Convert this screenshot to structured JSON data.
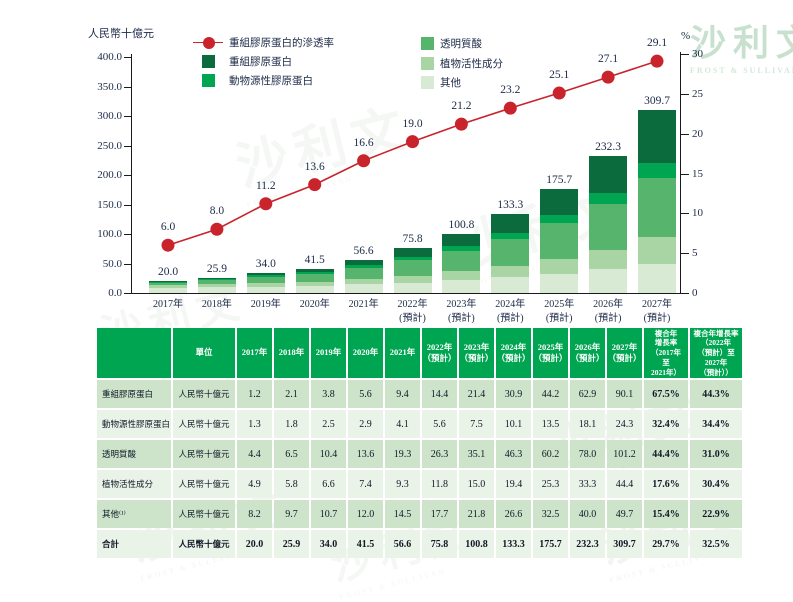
{
  "watermark": {
    "text": "沙利文",
    "subtext": "FROST & SULLIVAN"
  },
  "colors": {
    "accent_green": "#00a551",
    "dark_green": "#0b6b3c",
    "medium_green": "#56b46c",
    "light_green": "#a9d5a5",
    "pale_green": "#d8ead4",
    "line_red": "#c9232c",
    "row_dark": "#cde4cb",
    "row_light": "#e9f3e7",
    "text_navy": "#1c2a47"
  },
  "chart_data": {
    "type": "bar",
    "subtype": "stacked-bars-with-line",
    "categories": [
      {
        "label": "2017年",
        "sub": ""
      },
      {
        "label": "2018年",
        "sub": ""
      },
      {
        "label": "2019年",
        "sub": ""
      },
      {
        "label": "2020年",
        "sub": ""
      },
      {
        "label": "2021年",
        "sub": ""
      },
      {
        "label": "2022年",
        "sub": "(預計)"
      },
      {
        "label": "2023年",
        "sub": "(預計)"
      },
      {
        "label": "2024年",
        "sub": "(預計)"
      },
      {
        "label": "2025年",
        "sub": "(預計)"
      },
      {
        "label": "2026年",
        "sub": "(預計)"
      },
      {
        "label": "2027年",
        "sub": "(預計)"
      }
    ],
    "series": [
      {
        "name": "其他",
        "color": "#d8ead4",
        "values": [
          8.2,
          9.7,
          10.7,
          12.0,
          14.5,
          17.7,
          21.8,
          26.6,
          32.5,
          40.0,
          49.7
        ]
      },
      {
        "name": "植物活性成分",
        "color": "#a9d5a5",
        "values": [
          4.9,
          5.8,
          6.6,
          7.4,
          9.3,
          11.8,
          15.0,
          19.4,
          25.3,
          33.3,
          44.4
        ]
      },
      {
        "name": "透明質酸",
        "color": "#56b46c",
        "values": [
          4.4,
          6.5,
          10.4,
          13.6,
          19.3,
          26.3,
          35.1,
          46.3,
          60.2,
          78.0,
          101.2
        ]
      },
      {
        "name": "動物源性膠原蛋白",
        "color": "#00a551",
        "values": [
          1.3,
          1.8,
          2.5,
          2.9,
          4.1,
          5.6,
          7.5,
          10.1,
          13.5,
          18.1,
          24.3
        ]
      },
      {
        "name": "重組膠原蛋白",
        "color": "#0b6b3c",
        "values": [
          1.2,
          2.1,
          3.8,
          5.6,
          9.4,
          14.4,
          21.4,
          30.9,
          44.2,
          62.9,
          90.1
        ]
      }
    ],
    "totals": [
      "20.0",
      "25.9",
      "34.0",
      "41.5",
      "56.6",
      "75.8",
      "100.8",
      "133.3",
      "175.7",
      "232.3",
      "309.7"
    ],
    "line": {
      "name": "重組膠原蛋白的滲透率",
      "color": "#c9232c",
      "values": [
        6.0,
        8.0,
        11.2,
        13.6,
        16.6,
        19.0,
        21.2,
        23.2,
        25.1,
        27.1,
        29.1
      ],
      "labels": [
        "6.0",
        "8.0",
        "11.2",
        "13.6",
        "16.6",
        "19.0",
        "21.2",
        "23.2",
        "25.1",
        "27.1",
        "29.1"
      ]
    },
    "left_axis": {
      "title": "人民幣十億元",
      "max": 400,
      "ticks": [
        {
          "label": "400.0",
          "value": 400
        },
        {
          "label": "350.0",
          "value": 350
        },
        {
          "label": "300.0",
          "value": 300
        },
        {
          "label": "250.0",
          "value": 250
        },
        {
          "label": "200.0",
          "value": 200
        },
        {
          "label": "150.0",
          "value": 150
        },
        {
          "label": "100.0",
          "value": 100
        },
        {
          "label": "50.0",
          "value": 50
        },
        {
          "label": "0.0",
          "value": 0
        }
      ]
    },
    "right_axis": {
      "title": "%",
      "max": 30,
      "ticks": [
        {
          "label": "30",
          "value": 30
        },
        {
          "label": "25",
          "value": 25
        },
        {
          "label": "20",
          "value": 20
        },
        {
          "label": "15",
          "value": 15
        },
        {
          "label": "10",
          "value": 10
        },
        {
          "label": "5",
          "value": 5
        },
        {
          "label": "0",
          "value": 0
        }
      ]
    },
    "legend": [
      {
        "label": "重組膠原蛋白的滲透率",
        "type": "line",
        "color": "#c9232c"
      },
      {
        "label": "重組膠原蛋白",
        "type": "box",
        "color": "#0b6b3c"
      },
      {
        "label": "動物源性膠原蛋白",
        "type": "box",
        "color": "#00a551"
      },
      {
        "label": "透明質酸",
        "type": "box",
        "color": "#56b46c"
      },
      {
        "label": "植物活性成分",
        "type": "box",
        "color": "#a9d5a5"
      },
      {
        "label": "其他",
        "type": "box",
        "color": "#d8ead4"
      }
    ],
    "legend_position": "top",
    "grid": false
  },
  "table": {
    "unit_header": "單位",
    "year_headers": [
      {
        "label": "2017年",
        "sub": ""
      },
      {
        "label": "2018年",
        "sub": ""
      },
      {
        "label": "2019年",
        "sub": ""
      },
      {
        "label": "2020年",
        "sub": ""
      },
      {
        "label": "2021年",
        "sub": ""
      },
      {
        "label": "2022年",
        "sub": "（預計）"
      },
      {
        "label": "2023年",
        "sub": "（預計）"
      },
      {
        "label": "2024年",
        "sub": "（預計）"
      },
      {
        "label": "2025年",
        "sub": "（預計）"
      },
      {
        "label": "2026年",
        "sub": "（預計）"
      },
      {
        "label": "2027年",
        "sub": "（預計）"
      }
    ],
    "cagr_header_1": "複合年\n增長率\n（2017年\n至\n2021年）",
    "cagr_header_2": "複合年增長率\n（2022年\n（預計）至\n2027年\n（預計））",
    "rows": [
      {
        "label": "重組膠原蛋白",
        "unit": "人民幣十億元",
        "values": [
          "1.2",
          "2.1",
          "3.8",
          "5.6",
          "9.4",
          "14.4",
          "21.4",
          "30.9",
          "44.2",
          "62.9",
          "90.1"
        ],
        "cagr1": "67.5%",
        "cagr2": "44.3%",
        "total": false
      },
      {
        "label": "動物源性膠原蛋白",
        "unit": "人民幣十億元",
        "values": [
          "1.3",
          "1.8",
          "2.5",
          "2.9",
          "4.1",
          "5.6",
          "7.5",
          "10.1",
          "13.5",
          "18.1",
          "24.3"
        ],
        "cagr1": "32.4%",
        "cagr2": "34.4%",
        "total": false
      },
      {
        "label": "透明質酸",
        "unit": "人民幣十億元",
        "values": [
          "4.4",
          "6.5",
          "10.4",
          "13.6",
          "19.3",
          "26.3",
          "35.1",
          "46.3",
          "60.2",
          "78.0",
          "101.2"
        ],
        "cagr1": "44.4%",
        "cagr2": "31.0%",
        "total": false
      },
      {
        "label": "植物活性成分",
        "unit": "人民幣十億元",
        "values": [
          "4.9",
          "5.8",
          "6.6",
          "7.4",
          "9.3",
          "11.8",
          "15.0",
          "19.4",
          "25.3",
          "33.3",
          "44.4"
        ],
        "cagr1": "17.6%",
        "cagr2": "30.4%",
        "total": false
      },
      {
        "label": "其他⁽¹⁾",
        "unit": "人民幣十億元",
        "values": [
          "8.2",
          "9.7",
          "10.7",
          "12.0",
          "14.5",
          "17.7",
          "21.8",
          "26.6",
          "32.5",
          "40.0",
          "49.7"
        ],
        "cagr1": "15.4%",
        "cagr2": "22.9%",
        "total": false
      },
      {
        "label": "合計",
        "unit": "人民幣十億元",
        "values": [
          "20.0",
          "25.9",
          "34.0",
          "41.5",
          "56.6",
          "75.8",
          "100.8",
          "133.3",
          "175.7",
          "232.3",
          "309.7"
        ],
        "cagr1": "29.7%",
        "cagr2": "32.5%",
        "total": true
      }
    ]
  }
}
